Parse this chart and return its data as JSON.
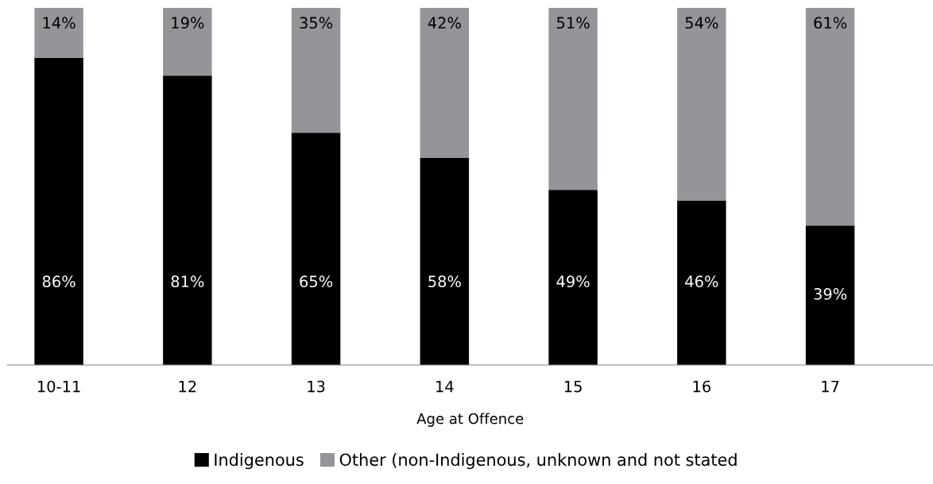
{
  "chart_data": {
    "type": "bar",
    "stacked": true,
    "xlabel": "Age at Offence",
    "categories": [
      "10-11",
      "12",
      "13",
      "14",
      "15",
      "16",
      "17"
    ],
    "series": [
      {
        "name": "Indigenous",
        "color": "#000000",
        "values": [
          86,
          81,
          65,
          58,
          49,
          46,
          39
        ],
        "value_labels": [
          "86%",
          "81%",
          "65%",
          "58%",
          "49%",
          "46%",
          "39%"
        ]
      },
      {
        "name": "Other (non-Indigenous, unknown and not stated",
        "color": "#939598",
        "values": [
          14,
          19,
          35,
          42,
          51,
          54,
          61
        ],
        "value_labels": [
          "14%",
          "19%",
          "35%",
          "42%",
          "51%",
          "54%",
          "61%"
        ]
      }
    ],
    "ylim": [
      0,
      100
    ],
    "tick_labels": "x",
    "grid": false,
    "legend": "bottom"
  }
}
